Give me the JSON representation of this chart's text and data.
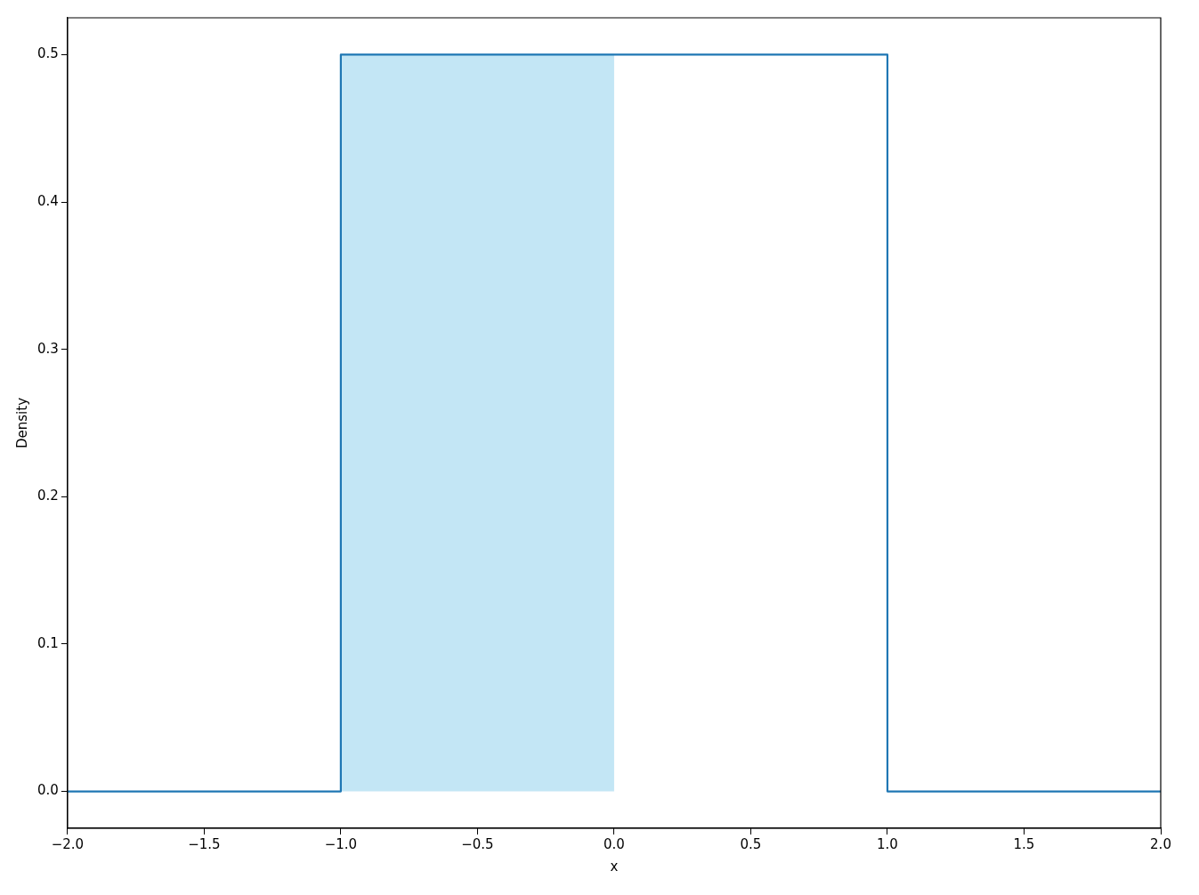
{
  "chart_data": {
    "type": "line",
    "xlabel": "x",
    "ylabel": "Density",
    "series": [
      {
        "type": "area",
        "color": "#c3e6f5",
        "x": [
          -1,
          0
        ],
        "values": [
          0.5,
          0.5
        ]
      },
      {
        "type": "line",
        "color": "#1f77b4",
        "x": [
          -2,
          -1,
          -1,
          1,
          1,
          2
        ],
        "values": [
          0,
          0,
          0.5,
          0.5,
          0,
          0
        ]
      }
    ],
    "xlim": [
      -2,
      2
    ],
    "xticks": [
      {
        "value": -2,
        "label": "−2.0"
      },
      {
        "value": -1.5,
        "label": "−1.5"
      },
      {
        "value": -1,
        "label": "−1.0"
      },
      {
        "value": -0.5,
        "label": "−0.5"
      },
      {
        "value": 0,
        "label": "0.0"
      },
      {
        "value": 0.5,
        "label": "0.5"
      },
      {
        "value": 1,
        "label": "1.0"
      },
      {
        "value": 1.5,
        "label": "1.5"
      },
      {
        "value": 2,
        "label": "2.0"
      }
    ],
    "ylim": [
      -0.025,
      0.525
    ],
    "yticks": [
      {
        "value": 0,
        "label": "0.0"
      },
      {
        "value": 0.1,
        "label": "0.1"
      },
      {
        "value": 0.2,
        "label": "0.2"
      },
      {
        "value": 0.3,
        "label": "0.3"
      },
      {
        "value": 0.4,
        "label": "0.4"
      },
      {
        "value": 0.5,
        "label": "0.5"
      }
    ],
    "grid": false,
    "legend": false,
    "marker": "none",
    "line_style": "solid"
  }
}
